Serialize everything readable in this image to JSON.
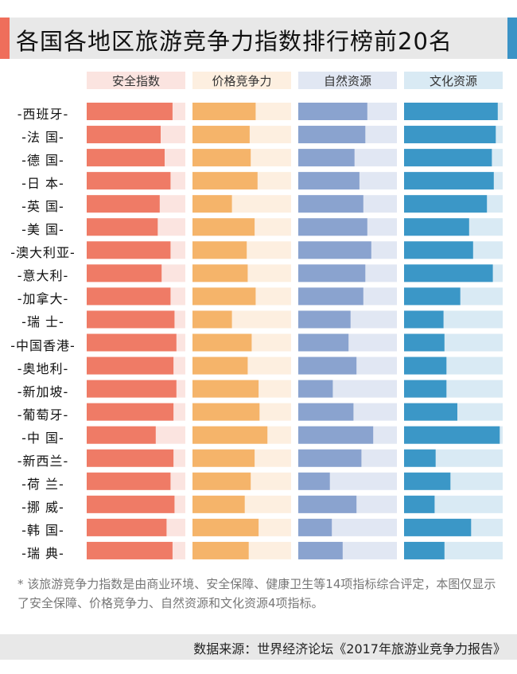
{
  "header": {
    "title": "各国各地区旅游竞争力指数排行榜前20名"
  },
  "colors": {
    "safety": "#ef7b66",
    "safety_track": "#fbe4e0",
    "price": "#f5b46a",
    "price_track": "#fdefe0",
    "nature": "#8aa3cf",
    "nature_track": "#e1e7f3",
    "culture": "#3b97c7",
    "culture_track": "#d9eaf4"
  },
  "chart_data": {
    "type": "bar",
    "title": "各国各地区旅游竞争力指数排行榜前20名",
    "note": "该旅游竞争力指数是由商业环境、安全保障、健康卫生等14项指标综合评定，本图仅显示了安全保障、价格竞争力、自然资源和文化资源4项指标。",
    "categories": [
      "西班牙",
      "法国",
      "德国",
      "日本",
      "英国",
      "美国",
      "澳大利亚",
      "意大利",
      "加拿大",
      "瑞士",
      "中国香港",
      "奥地利",
      "新加坡",
      "葡萄牙",
      "中国",
      "新西兰",
      "荷兰",
      "挪威",
      "韩国",
      "瑞典"
    ],
    "category_labels": [
      "-西班牙-",
      "-法 国-",
      "-德 国-",
      "-日 本-",
      "-英 国-",
      "-美 国-",
      "-澳大利亚-",
      "-意大利-",
      "-加拿大-",
      "-瑞 士-",
      "-中国香港-",
      "-奥地利-",
      "-新加坡-",
      "-葡萄牙-",
      "-中 国-",
      "-新西兰-",
      "-荷 兰-",
      "-挪 威-",
      "-韩 国-",
      "-瑞 典-"
    ],
    "max": 1.0,
    "series": [
      {
        "name": "安全指数",
        "values": [
          0.87,
          0.75,
          0.79,
          0.85,
          0.74,
          0.72,
          0.85,
          0.76,
          0.85,
          0.89,
          0.91,
          0.88,
          0.91,
          0.88,
          0.7,
          0.88,
          0.85,
          0.89,
          0.81,
          0.87
        ]
      },
      {
        "name": "价格竞争力",
        "values": [
          0.64,
          0.58,
          0.59,
          0.66,
          0.4,
          0.63,
          0.55,
          0.56,
          0.64,
          0.4,
          0.6,
          0.56,
          0.67,
          0.68,
          0.76,
          0.63,
          0.59,
          0.53,
          0.67,
          0.57
        ]
      },
      {
        "name": "自然资源",
        "values": [
          0.7,
          0.68,
          0.57,
          0.62,
          0.66,
          0.7,
          0.74,
          0.68,
          0.66,
          0.53,
          0.51,
          0.59,
          0.35,
          0.56,
          0.76,
          0.64,
          0.32,
          0.59,
          0.34,
          0.45
        ]
      },
      {
        "name": "文化资源",
        "values": [
          0.95,
          0.93,
          0.89,
          0.91,
          0.84,
          0.66,
          0.7,
          0.9,
          0.57,
          0.4,
          0.41,
          0.43,
          0.43,
          0.54,
          0.97,
          0.32,
          0.47,
          0.31,
          0.68,
          0.41
        ]
      }
    ]
  },
  "footnote": {
    "mark": "*",
    "text": "该旅游竞争力指数是由商业环境、安全保障、健康卫生等14项指标综合评定，本图仅显示了安全保障、价格竞争力、自然资源和文化资源4项指标。"
  },
  "source": {
    "text": "数据来源：世界经济论坛《2017年旅游业竞争力报告》"
  }
}
